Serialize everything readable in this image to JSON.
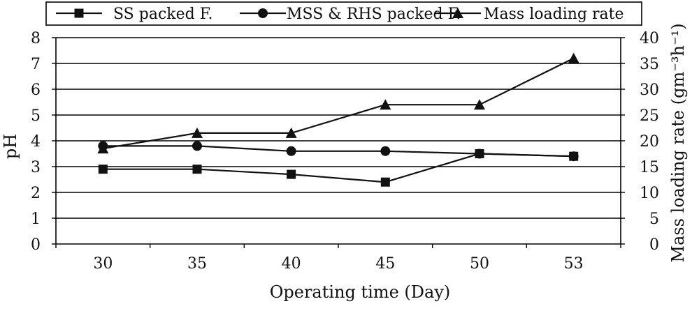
{
  "chart_data": {
    "type": "line",
    "categories": [
      "30",
      "35",
      "40",
      "45",
      "50",
      "53"
    ],
    "xlabel": "Operating time (Day)",
    "ylabel": "pH",
    "y2label": "Mass loading rate (gm⁻³h⁻¹)",
    "ylim": [
      0,
      8
    ],
    "y2lim": [
      0,
      40
    ],
    "yticks": [
      "0",
      "1",
      "2",
      "3",
      "4",
      "5",
      "6",
      "7",
      "8"
    ],
    "y2ticks": [
      "0",
      "5",
      "10",
      "15",
      "20",
      "25",
      "30",
      "35",
      "40"
    ],
    "grid": true,
    "legend_position": "top",
    "series": [
      {
        "name": "SS packed F.",
        "axis": "left",
        "marker": "square",
        "values": [
          2.9,
          2.9,
          2.7,
          2.4,
          3.5,
          3.4
        ]
      },
      {
        "name": "MSS & RHS packed F.",
        "axis": "left",
        "marker": "circle",
        "values": [
          3.8,
          3.8,
          3.6,
          3.6,
          3.5,
          3.4
        ]
      },
      {
        "name": "Mass loading rate",
        "axis": "right",
        "marker": "triangle",
        "values": [
          18.5,
          21.5,
          21.5,
          27,
          27,
          36
        ]
      }
    ],
    "colors": {
      "line": "#111111",
      "marker": "#111111",
      "grid": "#000000"
    }
  }
}
